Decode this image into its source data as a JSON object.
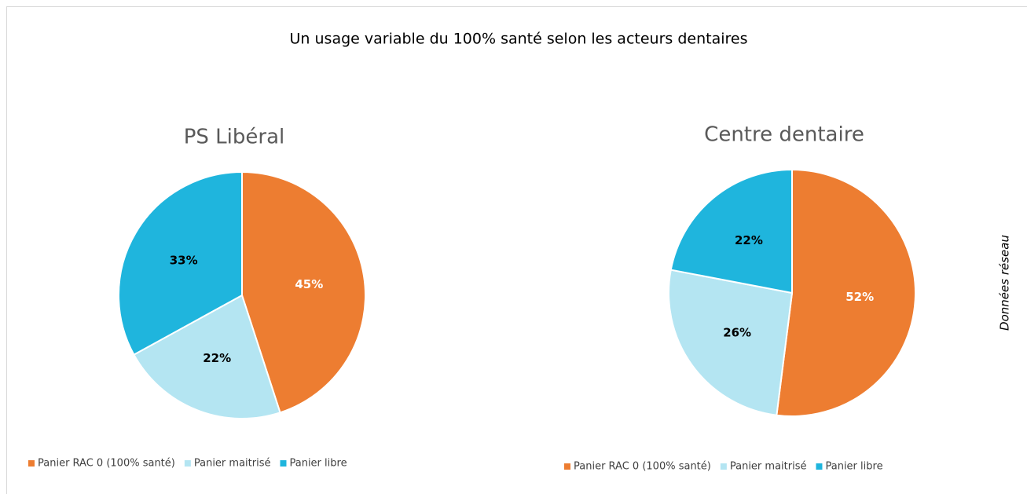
{
  "title": "Un usage variable du 100% santé selon les acteurs dentaires",
  "annotation": "Données réseau",
  "chart_data": [
    {
      "type": "pie",
      "title": "PS Libéral",
      "labels": [
        "Panier RAC 0 (100% santé)",
        "Panier maitrisé",
        "Panier libre"
      ],
      "values": [
        45,
        22,
        33
      ],
      "value_labels": [
        "45%",
        "22%",
        "33%"
      ],
      "colors": [
        "#ED7D31",
        "#B4E5F2",
        "#1FB5DD"
      ]
    },
    {
      "type": "pie",
      "title": "Centre dentaire",
      "labels": [
        "Panier RAC 0 (100% santé)",
        "Panier maitrisé",
        "Panier libre"
      ],
      "values": [
        52,
        26,
        22
      ],
      "value_labels": [
        "52%",
        "26%",
        "22%"
      ],
      "colors": [
        "#ED7D31",
        "#B4E5F2",
        "#1FB5DD"
      ]
    }
  ]
}
